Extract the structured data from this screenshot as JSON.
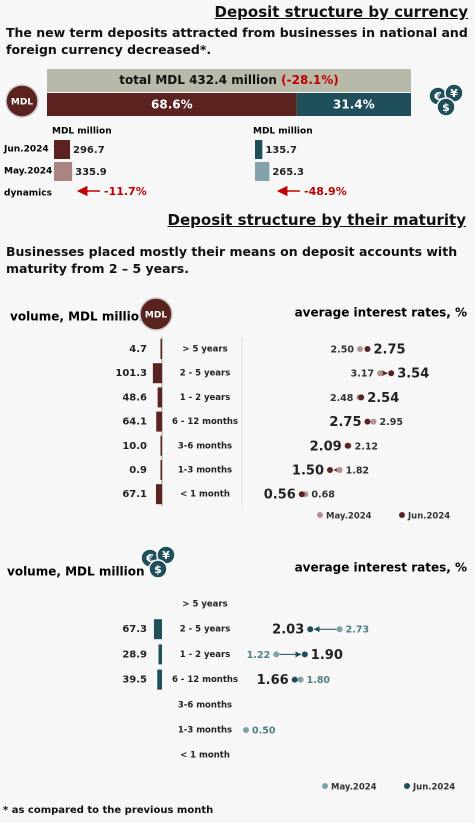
{
  "header": {
    "title": "Deposit structure by currency",
    "subtitle": "The new term deposits attracted from businesses in national and foreign currency decreased*."
  },
  "currency": {
    "total_label": "total MDL 432.4 million",
    "total_change": "(-28.1%)",
    "badge": "MDL",
    "icon_symbols": [
      "€",
      "¥",
      "$"
    ],
    "values": [
      68.6,
      31.4
    ],
    "value_labels": [
      "68.6%",
      "31.4%"
    ],
    "colors": [
      "#5b2320",
      "#1f4f5b"
    ]
  },
  "volumes": {
    "periods": [
      "Jun.2024",
      "May.2024"
    ],
    "dynamics_label": "dynamics",
    "groups": [
      {
        "unit": "MDL million",
        "values": [
          296.7,
          335.9
        ],
        "colors": [
          "#5b2320",
          "#a98480"
        ],
        "dynamics": -11.7,
        "dynamics_label": "-11.7%"
      },
      {
        "unit": "MDL million",
        "values": [
          135.7,
          265.3
        ],
        "colors": [
          "#1f4f5b",
          "#83a1a8"
        ],
        "dynamics": -48.9,
        "dynamics_label": "-48.9%"
      }
    ]
  },
  "maturity": {
    "title": "Deposit structure by their maturity",
    "subtitle": "Businesses placed mostly their means on deposit accounts with maturity from 2 – 5 years.",
    "panels": [
      {
        "volume_label": "volume, MDL million",
        "rate_label": "average interest rates, %",
        "bar_color": "#5b2320",
        "categories": [
          "> 5 years",
          "2 - 5 years",
          "1 - 2 years",
          "6 - 12 months",
          "3-6 months",
          "1-3 months",
          "< 1 month"
        ],
        "volumes": [
          4.7,
          101.3,
          48.6,
          64.1,
          10.0,
          0.9,
          67.1
        ],
        "volume_labels": [
          "4.7",
          "101.3",
          "48.6",
          "64.1",
          "10.0",
          "0.9",
          "67.1"
        ],
        "series": [
          {
            "name": "May.2024",
            "color": "#b09592",
            "values": [
              2.5,
              3.17,
              2.48,
              2.95,
              2.12,
              1.82,
              0.68
            ],
            "value_labels": [
              "2.50",
              "3.17",
              "2.48",
              "2.95",
              "2.12",
              "1.82",
              "0.68"
            ]
          },
          {
            "name": "Jun.2024",
            "color": "#5b2320",
            "values": [
              2.75,
              3.54,
              2.54,
              2.75,
              2.09,
              1.5,
              0.56
            ],
            "value_labels": [
              "2.75",
              "3.54",
              "2.54",
              "2.75",
              "2.09",
              "1.50",
              "0.56"
            ]
          }
        ]
      },
      {
        "volume_label": "volume, MDL million",
        "rate_label": "average interest rates, %",
        "bar_color": "#1f4f5b",
        "categories": [
          "> 5 years",
          "2 - 5 years",
          "1 - 2 years",
          "6 - 12 months",
          "3-6 months",
          "1-3 months",
          "< 1 month"
        ],
        "volumes": [
          null,
          67.3,
          28.9,
          39.5,
          null,
          null,
          null
        ],
        "volume_labels": [
          null,
          "67.3",
          "28.9",
          "39.5",
          null,
          null,
          null
        ],
        "series": [
          {
            "name": "May.2024",
            "color": "#7fa3ab",
            "values": [
              null,
              2.73,
              1.22,
              1.8,
              null,
              0.5,
              null
            ],
            "value_labels": [
              null,
              "2.73",
              "1.22",
              "1.80",
              null,
              "0.50",
              null
            ]
          },
          {
            "name": "Jun.2024",
            "color": "#1f4f5b",
            "values": [
              null,
              2.03,
              1.9,
              1.66,
              null,
              null,
              null
            ],
            "value_labels": [
              null,
              "2.03",
              "1.90",
              "1.66",
              null,
              null,
              null
            ]
          }
        ]
      }
    ]
  },
  "footnote": "* as compared to the previous month"
}
